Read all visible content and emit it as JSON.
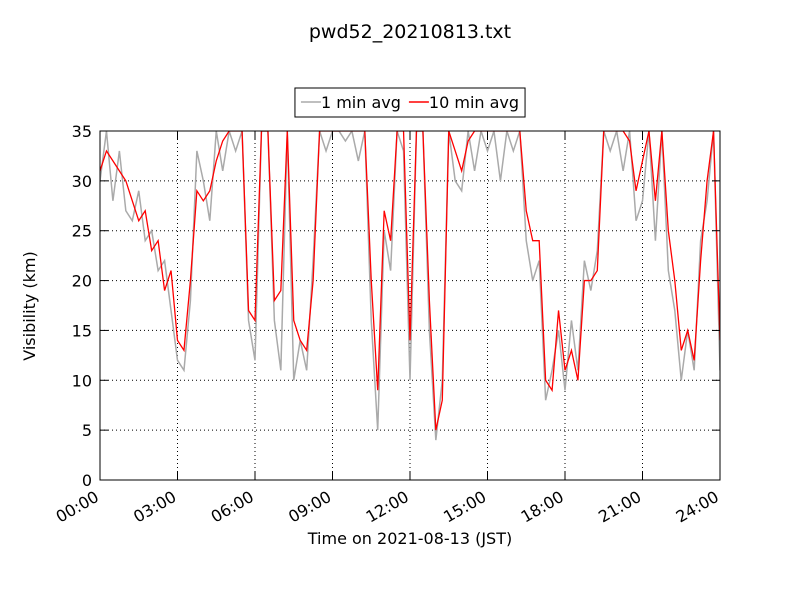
{
  "chart_data": {
    "type": "line",
    "title": "pwd52_20210813.txt",
    "x_label": "Time on 2021-08-13 (JST)",
    "y_label": "Visibility (km)",
    "x": [
      0,
      0.25,
      0.5,
      0.75,
      1,
      1.25,
      1.5,
      1.75,
      2,
      2.25,
      2.5,
      2.75,
      3,
      3.25,
      3.5,
      3.75,
      4,
      4.25,
      4.5,
      4.75,
      5,
      5.25,
      5.5,
      5.75,
      6,
      6.25,
      6.5,
      6.75,
      7,
      7.25,
      7.5,
      7.75,
      8,
      8.25,
      8.5,
      8.75,
      9,
      9.25,
      9.5,
      9.75,
      10,
      10.25,
      10.5,
      10.75,
      11,
      11.25,
      11.5,
      11.75,
      12,
      12.25,
      12.5,
      12.75,
      13,
      13.25,
      13.5,
      13.75,
      14,
      14.25,
      14.5,
      14.75,
      15,
      15.25,
      15.5,
      15.75,
      16,
      16.25,
      16.5,
      16.75,
      17,
      17.25,
      17.5,
      17.75,
      18,
      18.25,
      18.5,
      18.75,
      19,
      19.25,
      19.5,
      19.75,
      20,
      20.25,
      20.5,
      20.75,
      21,
      21.25,
      21.5,
      21.75,
      22,
      22.25,
      22.5,
      22.75,
      23,
      23.25,
      23.5,
      23.75,
      24
    ],
    "series": [
      {
        "name": "1 min avg",
        "color": "#aaaaaa",
        "values": [
          30,
          35,
          28,
          33,
          27,
          26,
          29,
          24,
          25,
          21,
          22,
          17,
          12,
          11,
          18,
          33,
          30,
          26,
          35,
          31,
          35,
          33,
          35,
          16,
          12,
          35,
          35,
          16,
          11,
          35,
          10,
          14,
          11,
          22,
          35,
          33,
          35,
          35,
          34,
          35,
          32,
          35,
          16,
          5,
          25,
          21,
          35,
          33,
          10,
          35,
          35,
          15,
          4,
          10,
          35,
          30,
          29,
          35,
          31,
          35,
          33,
          35,
          30,
          35,
          33,
          35,
          24,
          20,
          22,
          8,
          11,
          15,
          9,
          16,
          11,
          22,
          19,
          23,
          35,
          33,
          35,
          31,
          35,
          26,
          28,
          35,
          24,
          35,
          21,
          17,
          10,
          15,
          11,
          24,
          28,
          35,
          11
        ]
      },
      {
        "name": "10 min avg",
        "color": "#ff0000",
        "values": [
          31,
          33,
          32,
          31,
          30,
          28,
          26,
          27,
          23,
          24,
          19,
          21,
          14,
          13,
          20,
          29,
          28,
          29,
          32,
          34,
          35,
          35,
          35,
          17,
          16,
          35,
          35,
          18,
          19,
          35,
          16,
          14,
          13,
          20,
          35,
          35,
          35,
          35,
          35,
          35,
          35,
          35,
          20,
          9,
          27,
          24,
          35,
          35,
          14,
          35,
          35,
          18,
          5,
          8,
          35,
          33,
          31,
          34,
          35,
          35,
          35,
          35,
          35,
          35,
          35,
          35,
          27,
          24,
          24,
          10,
          9,
          17,
          11,
          13,
          10,
          20,
          20,
          21,
          35,
          35,
          35,
          35,
          34,
          29,
          32,
          35,
          28,
          35,
          25,
          20,
          13,
          15,
          12,
          22,
          30,
          35,
          14
        ]
      }
    ],
    "xlim": [
      0,
      24
    ],
    "xticks": [
      {
        "value": 0,
        "label": "00:00"
      },
      {
        "value": 3,
        "label": "03:00"
      },
      {
        "value": 6,
        "label": "06:00"
      },
      {
        "value": 9,
        "label": "09:00"
      },
      {
        "value": 12,
        "label": "12:00"
      },
      {
        "value": 15,
        "label": "15:00"
      },
      {
        "value": 18,
        "label": "18:00"
      },
      {
        "value": 21,
        "label": "21:00"
      },
      {
        "value": 24,
        "label": "24:00"
      }
    ],
    "ylim": [
      0,
      35
    ],
    "yticks": [
      0,
      5,
      10,
      15,
      20,
      25,
      30,
      35
    ],
    "grid": true,
    "legend": "top"
  }
}
